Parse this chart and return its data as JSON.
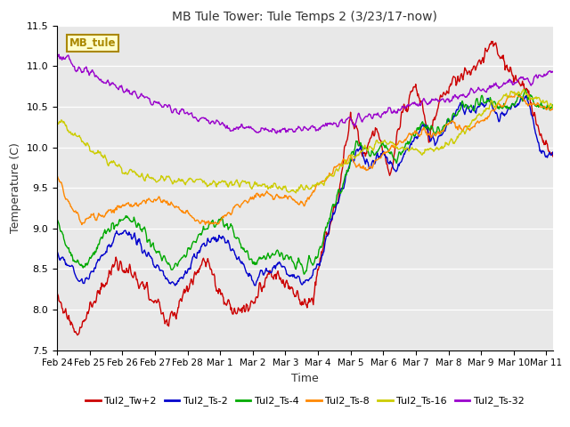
{
  "title": "MB Tule Tower: Tule Temps 2 (3/23/17-now)",
  "xlabel": "Time",
  "ylabel": "Temperature (C)",
  "ylim": [
    7.5,
    11.5
  ],
  "series_names": [
    "Tul2_Tw+2",
    "Tul2_Ts-2",
    "Tul2_Ts-4",
    "Tul2_Ts-8",
    "Tul2_Ts-16",
    "Tul2_Ts-32"
  ],
  "series_colors": [
    "#cc0000",
    "#0000cc",
    "#00aa00",
    "#ff8800",
    "#cccc00",
    "#9900cc"
  ],
  "series_lw": [
    1.0,
    1.0,
    1.0,
    1.0,
    1.0,
    1.0
  ],
  "bg_color": "#e8e8e8",
  "text_color": "#333333",
  "box_label": "MB_tule",
  "box_facecolor": "#ffffcc",
  "box_edgecolor": "#aa8800",
  "xtick_positions": [
    0,
    1,
    2,
    3,
    4,
    5,
    6,
    7,
    8,
    9,
    10,
    11,
    12,
    13,
    14,
    15
  ],
  "xtick_labels": [
    "Feb 24",
    "Feb 25",
    "Feb 26",
    "Feb 27",
    "Feb 28",
    "Mar 1",
    "Mar 2",
    "Mar 3",
    "Mar 4",
    "Mar 5",
    "Mar 6",
    "Mar 7",
    "Mar 8",
    "Mar 9",
    "Mar 10",
    "Mar 11"
  ],
  "ytick_positions": [
    7.5,
    8.0,
    8.5,
    9.0,
    9.5,
    10.0,
    10.5,
    11.0,
    11.5
  ],
  "x_start": 0,
  "x_end": 15.2,
  "num_points": 800
}
